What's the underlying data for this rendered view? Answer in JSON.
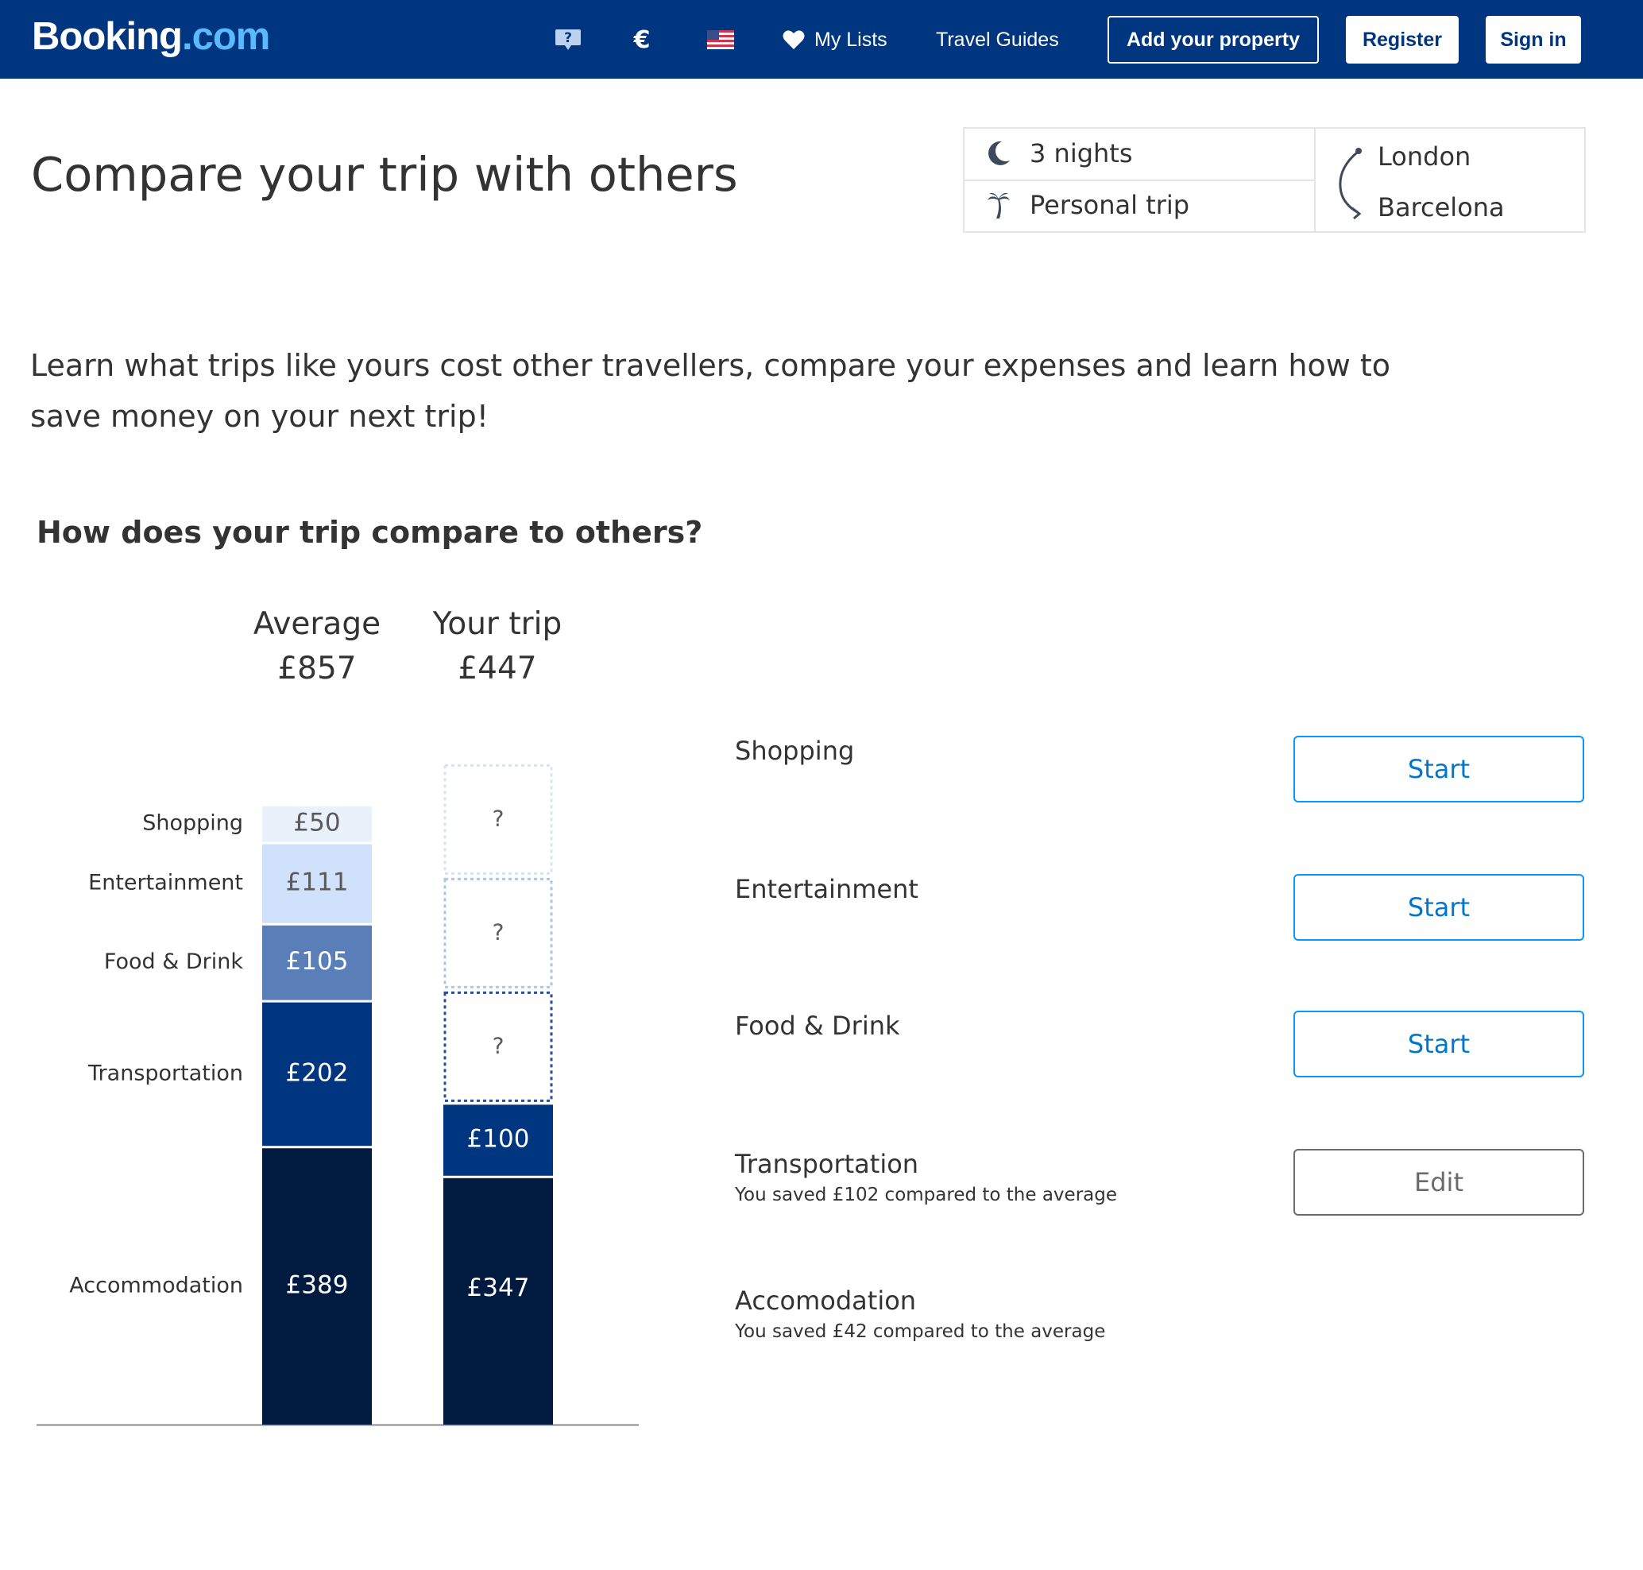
{
  "header": {
    "logo_main": "Booking",
    "logo_suffix": ".com",
    "icons": [
      "help-icon",
      "euro-icon",
      "us-flag-icon",
      "heart-icon"
    ],
    "currency_symbol": "€",
    "help_symbol": "?",
    "my_lists": "My Lists",
    "travel_guides": "Travel Guides",
    "add_property": "Add your property",
    "register": "Register",
    "sign_in": "Sign in"
  },
  "page": {
    "title": "Compare your trip with others",
    "intro": "Learn what trips like yours cost other travellers, compare your expenses and learn how to save money on your next trip!",
    "section_title": "How does your trip compare to others?"
  },
  "trip": {
    "nights": "3 nights",
    "type": "Personal trip",
    "origin": "London",
    "destination": "Barcelona"
  },
  "columns": {
    "average_label": "Average",
    "average_total": "£857",
    "yours_label": "Your trip",
    "yours_total": "£447"
  },
  "chart_data": {
    "type": "bar",
    "stacked": true,
    "categories": [
      "Average",
      "Your trip"
    ],
    "segment_order": [
      "Accommodation",
      "Transportation",
      "Food & Drink",
      "Entertainment",
      "Shopping"
    ],
    "series": [
      {
        "name": "Accommodation",
        "values": [
          389,
          347
        ],
        "labels": [
          "£389",
          "£347"
        ],
        "color": "#001a40"
      },
      {
        "name": "Transportation",
        "values": [
          202,
          100
        ],
        "labels": [
          "£202",
          "£100"
        ],
        "color": "#003580"
      },
      {
        "name": "Food & Drink",
        "values": [
          105,
          null
        ],
        "labels": [
          "£105",
          "?"
        ],
        "color": "#5a7fb8"
      },
      {
        "name": "Entertainment",
        "values": [
          111,
          null
        ],
        "labels": [
          "£111",
          "?"
        ],
        "color": "#cfe1fb"
      },
      {
        "name": "Shopping",
        "values": [
          50,
          null
        ],
        "labels": [
          "£50",
          "?"
        ],
        "color": "#e9f1fb"
      }
    ],
    "unknown_marker": "?",
    "unknown_border_colors": [
      "#2a4f8f",
      "#a9c6ee",
      "#d6e4f6"
    ]
  },
  "categories": [
    {
      "title": "Shopping",
      "subtitle": "",
      "action": "Start",
      "action_type": "start"
    },
    {
      "title": "Entertainment",
      "subtitle": "",
      "action": "Start",
      "action_type": "start"
    },
    {
      "title": "Food & Drink",
      "subtitle": "",
      "action": "Start",
      "action_type": "start"
    },
    {
      "title": "Transportation",
      "subtitle": "You saved £102 compared to the average",
      "action": "Edit",
      "action_type": "edit"
    },
    {
      "title": "Accomodation",
      "subtitle": "You saved £42 compared to the average",
      "action": "",
      "action_type": "none"
    }
  ],
  "colors": {
    "brand_blue": "#003580",
    "link_blue": "#0077cc",
    "text": "#333333"
  }
}
